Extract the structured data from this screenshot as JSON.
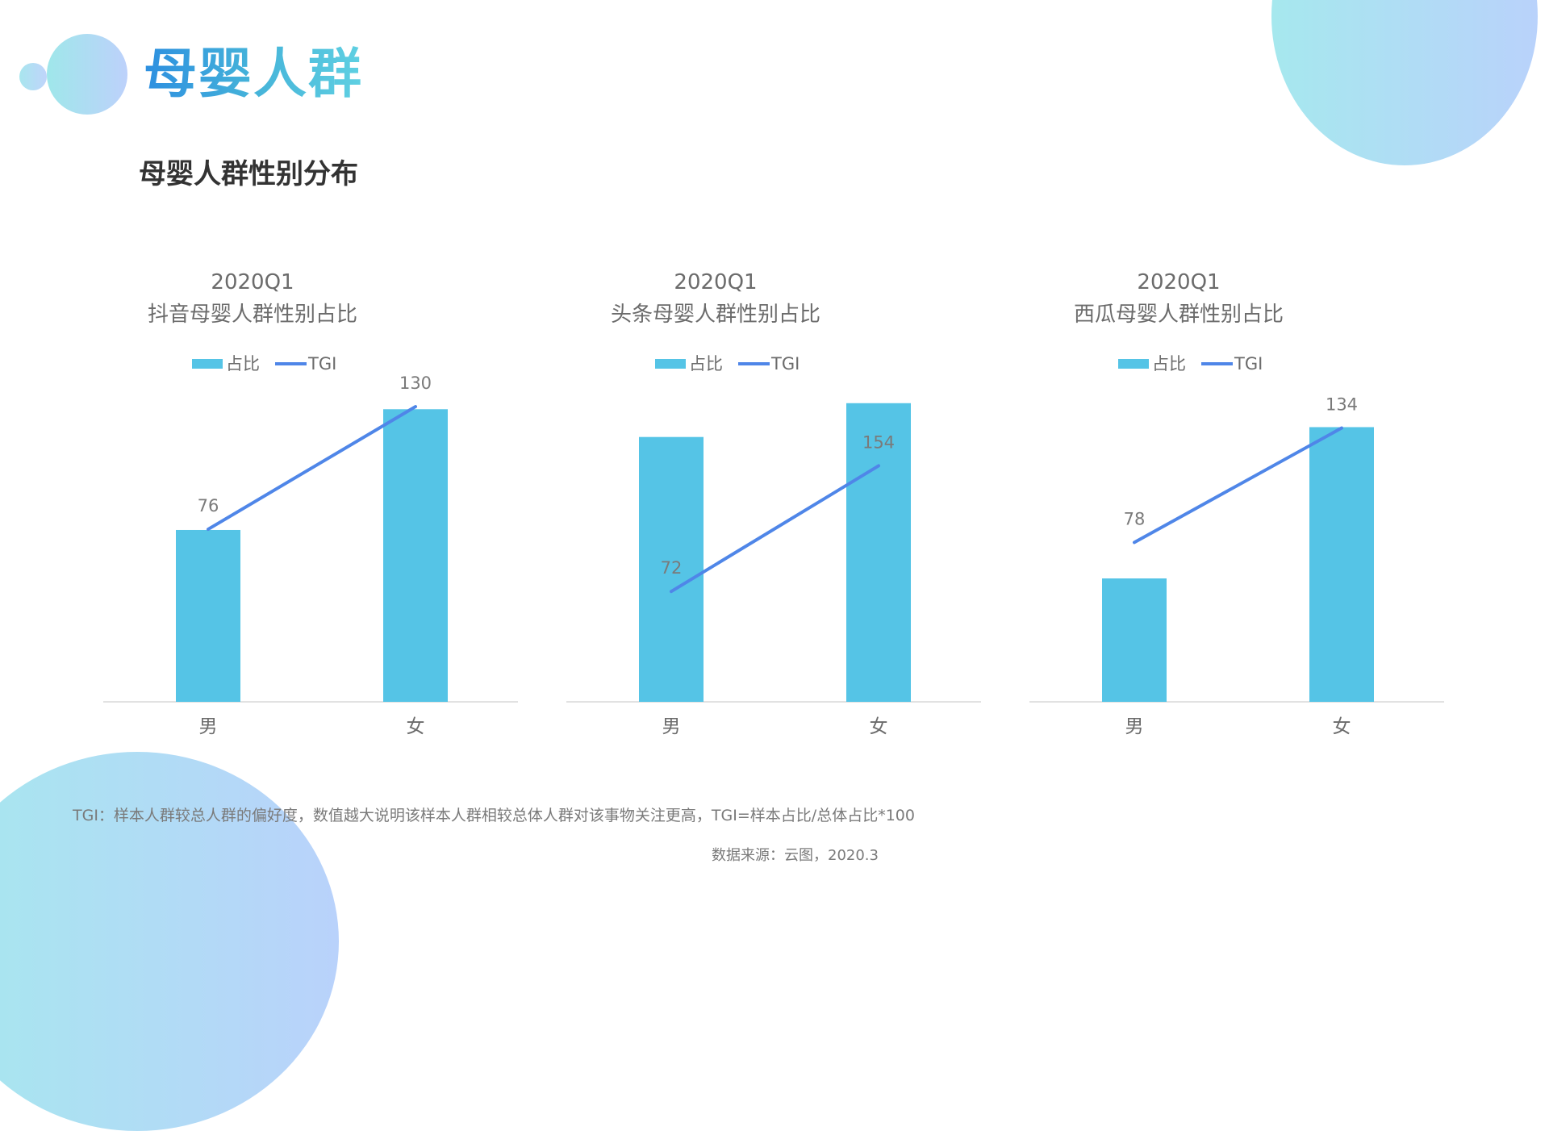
{
  "page": {
    "title": "母婴人群",
    "subtitle": "母婴人群性别分布",
    "footnote": "TGI：样本人群较总人群的偏好度，数值越大说明该样本人群相较总体人群对该事物关注更高，TGI=样本占比/总体占比*100",
    "source": "数据来源：云图，2020.3"
  },
  "colors": {
    "bar": "#55c4e6",
    "line": "#4f86e8",
    "axis": "#d9d9d9",
    "decoration_start": "#a6e8ee",
    "decoration_end": "#b9d2fb"
  },
  "chart_data": [
    {
      "type": "bar",
      "title_line1": "2020Q1",
      "title_line2": "抖音母婴人群性别占比",
      "legend": [
        "占比",
        "TGI"
      ],
      "categories": [
        "男",
        "女"
      ],
      "series": [
        {
          "name": "占比",
          "type": "bar",
          "values": [
            0.37,
            0.63
          ]
        },
        {
          "name": "TGI",
          "type": "line",
          "values": [
            76,
            130
          ]
        }
      ],
      "data_labels": [
        "76",
        "130"
      ],
      "ylim_bar": [
        0,
        0.66
      ],
      "ylim_line": [
        0,
        135
      ]
    },
    {
      "type": "bar",
      "title_line1": "2020Q1",
      "title_line2": "头条母婴人群性别占比",
      "legend": [
        "占比",
        "TGI"
      ],
      "categories": [
        "男",
        "女"
      ],
      "series": [
        {
          "name": "占比",
          "type": "bar",
          "values": [
            0.47,
            0.53
          ]
        },
        {
          "name": "TGI",
          "type": "line",
          "values": [
            72,
            154
          ]
        }
      ],
      "data_labels": [
        "72",
        "154"
      ],
      "ylim_bar": [
        0,
        0.544
      ],
      "ylim_line": [
        0,
        200
      ]
    },
    {
      "type": "bar",
      "title_line1": "2020Q1",
      "title_line2": "西瓜母婴人群性别占比",
      "legend": [
        "占比",
        "TGI"
      ],
      "categories": [
        "男",
        "女"
      ],
      "series": [
        {
          "name": "占比",
          "type": "bar",
          "values": [
            0.31,
            0.69
          ]
        },
        {
          "name": "TGI",
          "type": "line",
          "values": [
            78,
            134
          ]
        }
      ],
      "data_labels": [
        "78",
        "134"
      ],
      "ylim_bar": [
        0,
        0.77
      ],
      "ylim_line": [
        0,
        150
      ]
    }
  ]
}
